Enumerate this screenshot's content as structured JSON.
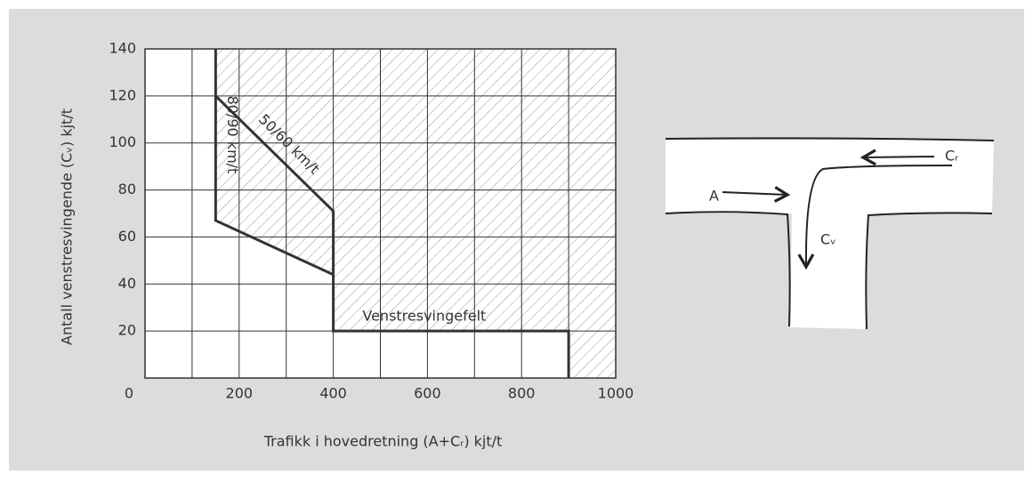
{
  "chart_data": {
    "type": "line",
    "xlabel": "Trafikk i hovedretning (A+Cᵣ) kjt/t",
    "ylabel": "Antall venstresvingende (Cᵥ) kjt/t",
    "xlim": [
      0,
      1000
    ],
    "ylim": [
      0,
      140
    ],
    "xticks": [
      0,
      200,
      400,
      600,
      800,
      1000
    ],
    "xgrid": [
      100,
      200,
      300,
      400,
      500,
      600,
      700,
      800,
      900
    ],
    "yticks": [
      20,
      40,
      60,
      80,
      100,
      120,
      140
    ],
    "grid": true,
    "color": "#333333",
    "hatch": true,
    "series": [
      {
        "name": "50/60 km/t",
        "x": [
          150,
          400,
          400
        ],
        "values": [
          120,
          71,
          44
        ]
      },
      {
        "name": "80/90 km/t",
        "x": [
          150,
          150,
          400
        ],
        "values": [
          140,
          67,
          44
        ]
      },
      {
        "name": "Venstresvingefelt",
        "x": [
          400,
          400,
          900,
          900
        ],
        "values": [
          44,
          20,
          20,
          0
        ]
      }
    ]
  },
  "diagram": {
    "labels": [
      "A",
      "Cᵣ",
      "Cᵥ"
    ]
  }
}
